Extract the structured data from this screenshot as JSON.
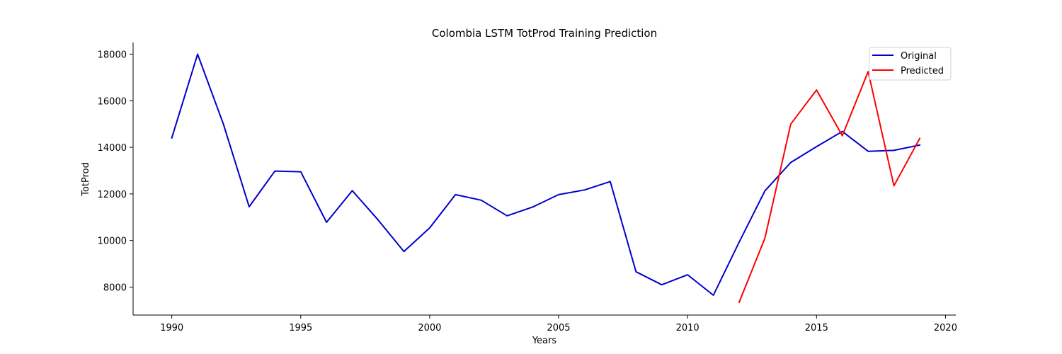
{
  "chart_data": {
    "type": "line",
    "title": "Colombia LSTM TotProd Training Prediction",
    "xlabel": "Years",
    "ylabel": "TotProd",
    "xlim": [
      1988.5,
      2020.4
    ],
    "ylim": [
      6800,
      18500
    ],
    "xticks": [
      1990,
      1995,
      2000,
      2005,
      2010,
      2015,
      2020
    ],
    "yticks": [
      8000,
      10000,
      12000,
      14000,
      16000,
      18000
    ],
    "grid": false,
    "legend_position": "top-right",
    "series": [
      {
        "name": "Original",
        "color": "#0000cc",
        "x": [
          1990,
          1991,
          1992,
          1993,
          1994,
          1995,
          1996,
          1997,
          1998,
          1999,
          2000,
          2001,
          2002,
          2003,
          2004,
          2005,
          2006,
          2007,
          2008,
          2009,
          2010,
          2011,
          2012,
          2013,
          2014,
          2015,
          2016,
          2017,
          2018,
          2019
        ],
        "y": [
          14400,
          18000,
          15000,
          11450,
          12980,
          12950,
          10780,
          12140,
          10880,
          9530,
          10540,
          11970,
          11730,
          11060,
          11440,
          11970,
          12170,
          12530,
          8660,
          8100,
          8530,
          7650,
          9930,
          12130,
          13350,
          14030,
          14680,
          13830,
          13870,
          14100
        ]
      },
      {
        "name": "Predicted",
        "color": "#ff0000",
        "x": [
          2012,
          2013,
          2014,
          2015,
          2016,
          2017,
          2018,
          2019
        ],
        "y": [
          7350,
          10100,
          15000,
          16460,
          14500,
          17250,
          12350,
          14380
        ]
      }
    ]
  }
}
